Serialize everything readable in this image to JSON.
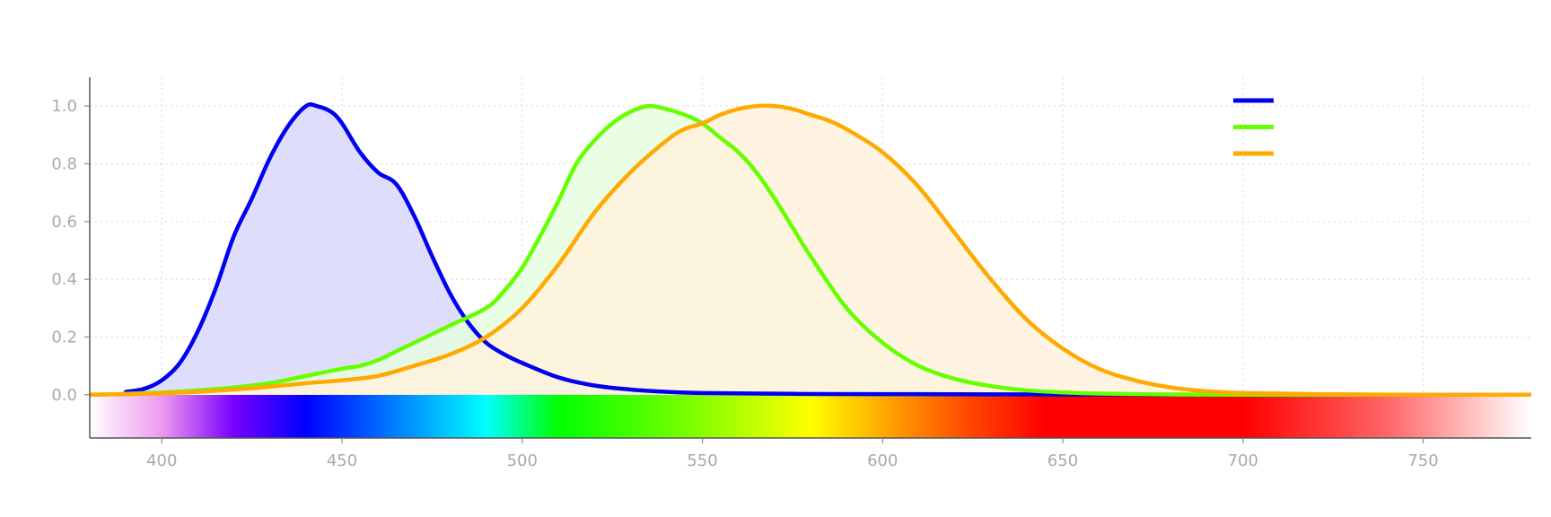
{
  "chart_data": {
    "type": "area",
    "title": "",
    "xlabel": "",
    "ylabel": "",
    "xlim": [
      380,
      780
    ],
    "ylim": [
      -0.15,
      1.1
    ],
    "x_ticks": [
      "400",
      "450",
      "500",
      "550",
      "600",
      "650",
      "700",
      "750"
    ],
    "y_ticks": [
      "0.0",
      "0.2",
      "0.4",
      "0.6",
      "0.8",
      "1.0"
    ],
    "grid": true,
    "legend_position": "top-right",
    "spectrum_bar": {
      "y_range": [
        -0.15,
        0
      ],
      "gradient_stops": [
        {
          "x": 380,
          "color": "#ffffff"
        },
        {
          "x": 400,
          "color": "#ee99ee"
        },
        {
          "x": 420,
          "color": "#7700ff"
        },
        {
          "x": 440,
          "color": "#0000ff"
        },
        {
          "x": 460,
          "color": "#0066ff"
        },
        {
          "x": 490,
          "color": "#00ffff"
        },
        {
          "x": 510,
          "color": "#00ff00"
        },
        {
          "x": 550,
          "color": "#88ff00"
        },
        {
          "x": 580,
          "color": "#ffff00"
        },
        {
          "x": 600,
          "color": "#ffaa00"
        },
        {
          "x": 625,
          "color": "#ff4400"
        },
        {
          "x": 645,
          "color": "#ff0000"
        },
        {
          "x": 700,
          "color": "#ff0000"
        },
        {
          "x": 740,
          "color": "#ff6666"
        },
        {
          "x": 780,
          "color": "#ffffff"
        }
      ]
    },
    "series": [
      {
        "color": "#0000ee",
        "fill": "#d8d8fb",
        "x": [
          390,
          395,
          400,
          405,
          410,
          415,
          420,
          425,
          430,
          435,
          440,
          443,
          447,
          450,
          455,
          460,
          465,
          470,
          475,
          480,
          485,
          490,
          495,
          500,
          510,
          520,
          530,
          540,
          550,
          575,
          600,
          650,
          700,
          780
        ],
        "values": [
          0.01,
          0.02,
          0.05,
          0.11,
          0.22,
          0.37,
          0.55,
          0.68,
          0.82,
          0.93,
          1.0,
          1.0,
          0.98,
          0.94,
          0.84,
          0.77,
          0.73,
          0.62,
          0.48,
          0.35,
          0.25,
          0.18,
          0.14,
          0.11,
          0.06,
          0.032,
          0.018,
          0.01,
          0.006,
          0.003,
          0.002,
          0.001,
          0.0,
          0.0
        ]
      },
      {
        "color": "#66ff00",
        "fill": "#e6fde0",
        "x": [
          380,
          390,
          400,
          410,
          420,
          430,
          440,
          450,
          455,
          460,
          465,
          470,
          480,
          490,
          495,
          500,
          505,
          510,
          515,
          520,
          525,
          530,
          535,
          540,
          545,
          550,
          555,
          560,
          565,
          570,
          575,
          580,
          590,
          600,
          610,
          620,
          630,
          640,
          650,
          660,
          680,
          700,
          780
        ],
        "values": [
          0.0,
          0.003,
          0.008,
          0.015,
          0.025,
          0.04,
          0.065,
          0.09,
          0.1,
          0.12,
          0.15,
          0.18,
          0.24,
          0.3,
          0.36,
          0.44,
          0.55,
          0.67,
          0.8,
          0.88,
          0.94,
          0.98,
          1.0,
          0.99,
          0.97,
          0.94,
          0.89,
          0.84,
          0.77,
          0.68,
          0.58,
          0.48,
          0.3,
          0.18,
          0.1,
          0.055,
          0.03,
          0.015,
          0.008,
          0.004,
          0.001,
          0.0,
          0.0
        ]
      },
      {
        "color": "#ffaa00",
        "fill": "#fff2dc",
        "x": [
          380,
          390,
          400,
          410,
          420,
          430,
          440,
          450,
          460,
          470,
          480,
          490,
          500,
          510,
          520,
          530,
          540,
          545,
          550,
          555,
          560,
          565,
          570,
          575,
          580,
          585,
          590,
          600,
          610,
          620,
          630,
          640,
          650,
          660,
          670,
          680,
          690,
          700,
          720,
          750,
          780
        ],
        "values": [
          0.0,
          0.002,
          0.005,
          0.01,
          0.018,
          0.028,
          0.04,
          0.05,
          0.065,
          0.1,
          0.14,
          0.2,
          0.3,
          0.45,
          0.63,
          0.77,
          0.88,
          0.92,
          0.94,
          0.97,
          0.99,
          1.0,
          1.0,
          0.99,
          0.97,
          0.95,
          0.92,
          0.84,
          0.72,
          0.56,
          0.4,
          0.26,
          0.16,
          0.09,
          0.05,
          0.025,
          0.012,
          0.006,
          0.002,
          0.0,
          0.0
        ]
      }
    ]
  }
}
